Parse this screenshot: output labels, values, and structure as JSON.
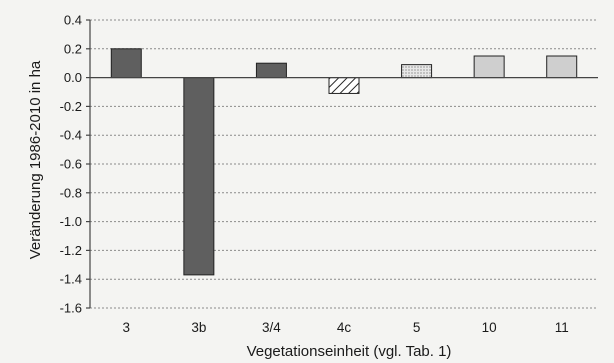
{
  "chart_data": {
    "type": "bar",
    "xlabel": "Vegetationseinheit (vgl. Tab. 1)",
    "ylabel": "Veränderung 1986-2010 in ha",
    "ylim": [
      -1.6,
      0.4
    ],
    "yticks": [
      0.4,
      0.2,
      0.0,
      -0.2,
      -0.4,
      -0.6,
      -0.8,
      -1.0,
      -1.2,
      -1.4,
      -1.6
    ],
    "ytick_labels": [
      "0.4",
      "0.2",
      "0.0",
      "-0.2",
      "-0.4",
      "-0.6",
      "-0.8",
      "-1.0",
      "-1.2",
      "-1.4",
      "-1.6"
    ],
    "grid": true,
    "categories": [
      "3",
      "3b",
      "3/4",
      "4c",
      "5",
      "10",
      "11"
    ],
    "values": [
      0.2,
      -1.37,
      0.1,
      -0.11,
      0.09,
      0.15,
      0.15
    ],
    "bar_fills": [
      "dark",
      "dark",
      "dark",
      "hatch",
      "dots",
      "light",
      "light"
    ],
    "colors": {
      "dark": "#5f5f5f",
      "light": "#cfcfcf",
      "dots": "#e6e6e6",
      "hatch": "#ffffff",
      "background": "#f4f4f2"
    }
  }
}
